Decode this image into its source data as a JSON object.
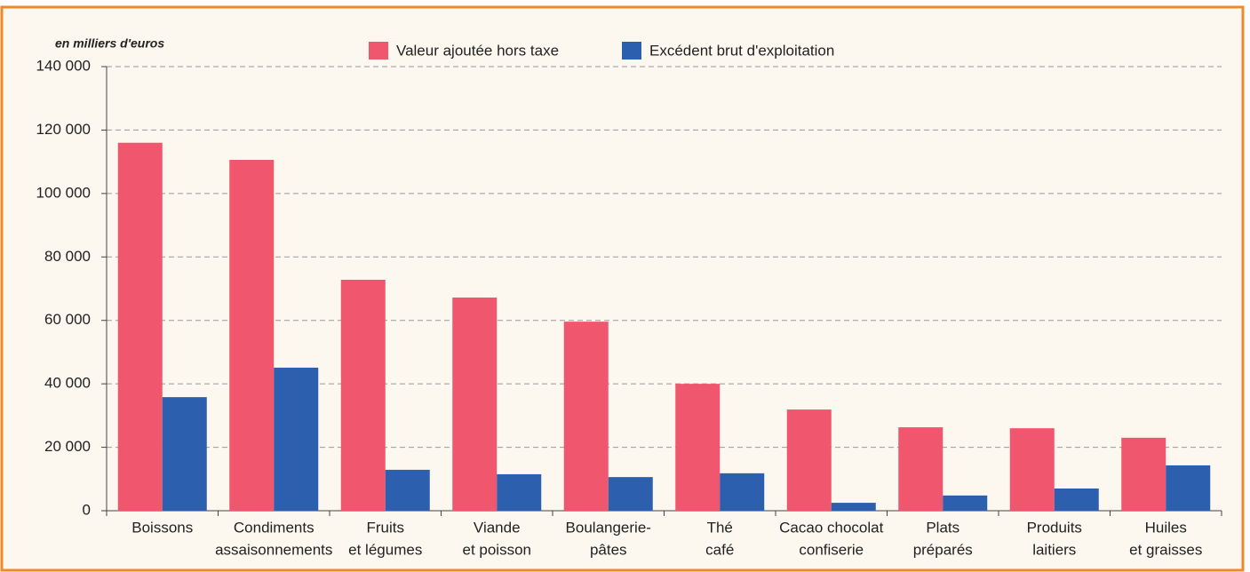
{
  "chart_data": {
    "type": "bar",
    "unit_label": "en milliers d'euros",
    "categories": [
      [
        "Boissons"
      ],
      [
        "Condiments",
        "assaisonnements"
      ],
      [
        "Fruits",
        "et légumes"
      ],
      [
        "Viande",
        "et poisson"
      ],
      [
        "Boulangerie-",
        "pâtes"
      ],
      [
        "Thé",
        "café"
      ],
      [
        "Cacao chocolat",
        "confiserie"
      ],
      [
        "Plats",
        "préparés"
      ],
      [
        "Produits",
        "laitiers"
      ],
      [
        "Huiles",
        "et graisses"
      ]
    ],
    "series": [
      {
        "name": "Valeur ajoutée hors taxe",
        "color": "#f0566e",
        "values": [
          116000,
          110600,
          72800,
          67200,
          59600,
          40000,
          31900,
          26300,
          26000,
          23000
        ]
      },
      {
        "name": "Excédent brut d'exploitation",
        "color": "#2c5fae",
        "values": [
          35800,
          45100,
          12900,
          11500,
          10600,
          11800,
          2500,
          4800,
          7000,
          14300
        ]
      }
    ],
    "ylim": [
      0,
      140000
    ],
    "yticks": [
      0,
      {
        "value": 20000,
        "label": "20 000"
      },
      {
        "value": 40000,
        "label": "40 000"
      },
      {
        "value": 60000,
        "label": "60 000"
      },
      {
        "value": 80000,
        "label": "80 000"
      },
      {
        "value": 100000,
        "label": "100 000"
      },
      {
        "value": 120000,
        "label": "120 000"
      },
      {
        "value": 140000,
        "label": "140 000"
      }
    ],
    "grid": true,
    "legend": "top"
  }
}
